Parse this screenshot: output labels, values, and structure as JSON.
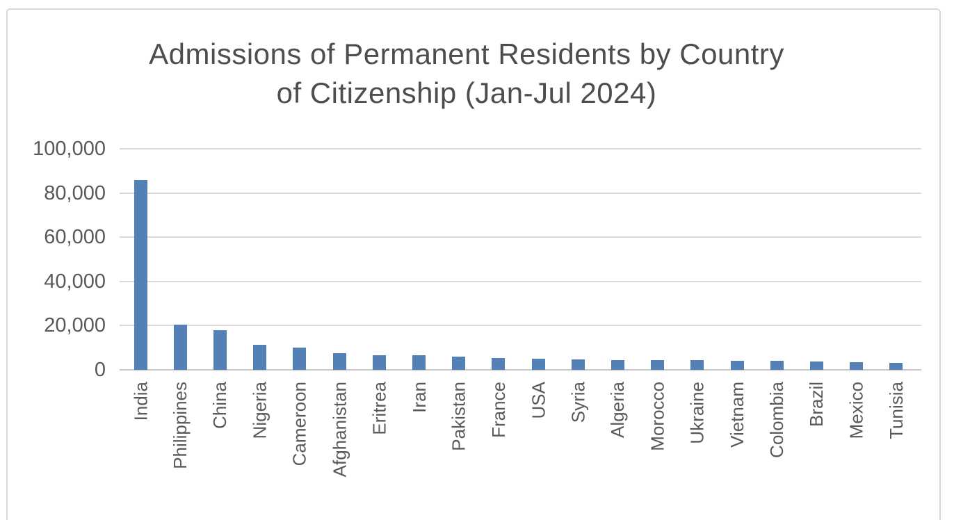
{
  "chart_data": {
    "type": "bar",
    "title": "Admissions of Permanent Residents by Country of Citizenship (Jan-Jul 2024)",
    "title_lines": [
      "Admissions of Permanent Residents by Country",
      "of Citizenship (Jan-Jul 2024)"
    ],
    "categories": [
      "India",
      "Philippines",
      "China",
      "Nigeria",
      "Cameroon",
      "Afghanistan",
      "Eritrea",
      "Iran",
      "Pakistan",
      "France",
      "USA",
      "Syria",
      "Algeria",
      "Morocco",
      "Ukraine",
      "Vietnam",
      "Colombia",
      "Brazil",
      "Mexico",
      "Tunisia"
    ],
    "values": [
      86000,
      20300,
      18000,
      11200,
      10100,
      7500,
      6700,
      6500,
      5900,
      5200,
      5100,
      4700,
      4400,
      4350,
      4300,
      4200,
      4100,
      3700,
      3600,
      3100
    ],
    "xlabel": "",
    "ylabel": "",
    "ylim": [
      0,
      100000
    ],
    "ytick_step": 20000,
    "ytick_labels": [
      "0",
      "20,000",
      "40,000",
      "60,000",
      "80,000",
      "100,000"
    ],
    "grid": true,
    "legend_position": "none",
    "bar_color": "#5380b5",
    "gridline_color": "#d9d9d9",
    "axis_line_color": "#c8c8c8",
    "label_color": "#595959",
    "title_color": "#4d4d4d"
  }
}
